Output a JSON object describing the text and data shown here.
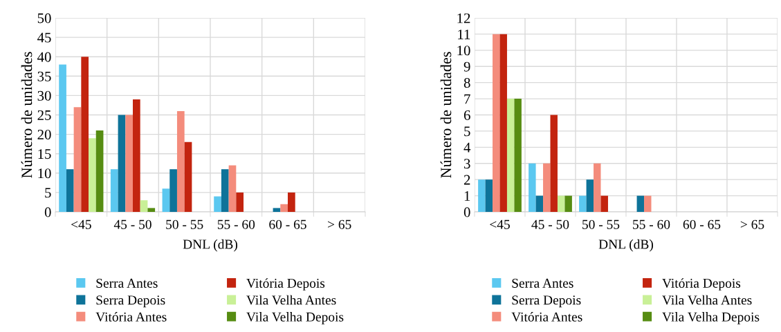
{
  "chart_data": [
    {
      "type": "bar",
      "xlabel": "DNL (dB)",
      "ylabel": "Número de unidades",
      "categories": [
        "<45",
        "45 - 50",
        "50 - 55",
        "55 - 60",
        "60 - 65",
        "> 65"
      ],
      "series": [
        {
          "name": "Serra Antes",
          "color": "#5bc8f0",
          "values": [
            38,
            11,
            6,
            4,
            0,
            0
          ]
        },
        {
          "name": "Serra Depois",
          "color": "#0e7399",
          "values": [
            11,
            25,
            11,
            11,
            1,
            0
          ]
        },
        {
          "name": "Vitória Antes",
          "color": "#f48c7c",
          "values": [
            27,
            25,
            26,
            12,
            2,
            0
          ]
        },
        {
          "name": "Vitória Depois",
          "color": "#c3240f",
          "values": [
            40,
            29,
            18,
            5,
            5,
            0
          ]
        },
        {
          "name": "Vila Velha Antes",
          "color": "#c9f097",
          "values": [
            19,
            3,
            0,
            0,
            0,
            0
          ]
        },
        {
          "name": "Vila Velha Depois",
          "color": "#568c12",
          "values": [
            21,
            1,
            0,
            0,
            0,
            0
          ]
        }
      ],
      "ylim": [
        0,
        50
      ],
      "yticks": [
        0,
        5,
        10,
        15,
        20,
        25,
        30,
        35,
        40,
        45,
        50
      ],
      "grid": true,
      "legend": "bottom"
    },
    {
      "type": "bar",
      "xlabel": "DNL (dB)",
      "ylabel": "Número de unidades",
      "categories": [
        "<45",
        "45 - 50",
        "50 - 55",
        "55 - 60",
        "60 - 65",
        "> 65"
      ],
      "series": [
        {
          "name": "Serra Antes",
          "color": "#5bc8f0",
          "values": [
            2,
            3,
            1,
            0,
            0,
            0
          ]
        },
        {
          "name": "Serra Depois",
          "color": "#0e7399",
          "values": [
            2,
            1,
            2,
            1,
            0,
            0
          ]
        },
        {
          "name": "Vitória Antes",
          "color": "#f48c7c",
          "values": [
            11,
            3,
            3,
            1,
            0,
            0
          ]
        },
        {
          "name": "Vitória Depois",
          "color": "#c3240f",
          "values": [
            11,
            6,
            1,
            0,
            0,
            0
          ]
        },
        {
          "name": "Vila Velha Antes",
          "color": "#c9f097",
          "values": [
            7,
            1,
            0,
            0,
            0,
            0
          ]
        },
        {
          "name": "Vila Velha Depois",
          "color": "#568c12",
          "values": [
            7,
            1,
            0,
            0,
            0,
            0
          ]
        }
      ],
      "ylim": [
        0,
        12
      ],
      "yticks": [
        0,
        1,
        2,
        3,
        4,
        5,
        6,
        7,
        8,
        9,
        10,
        11,
        12
      ],
      "grid": true,
      "legend": "bottom"
    }
  ]
}
